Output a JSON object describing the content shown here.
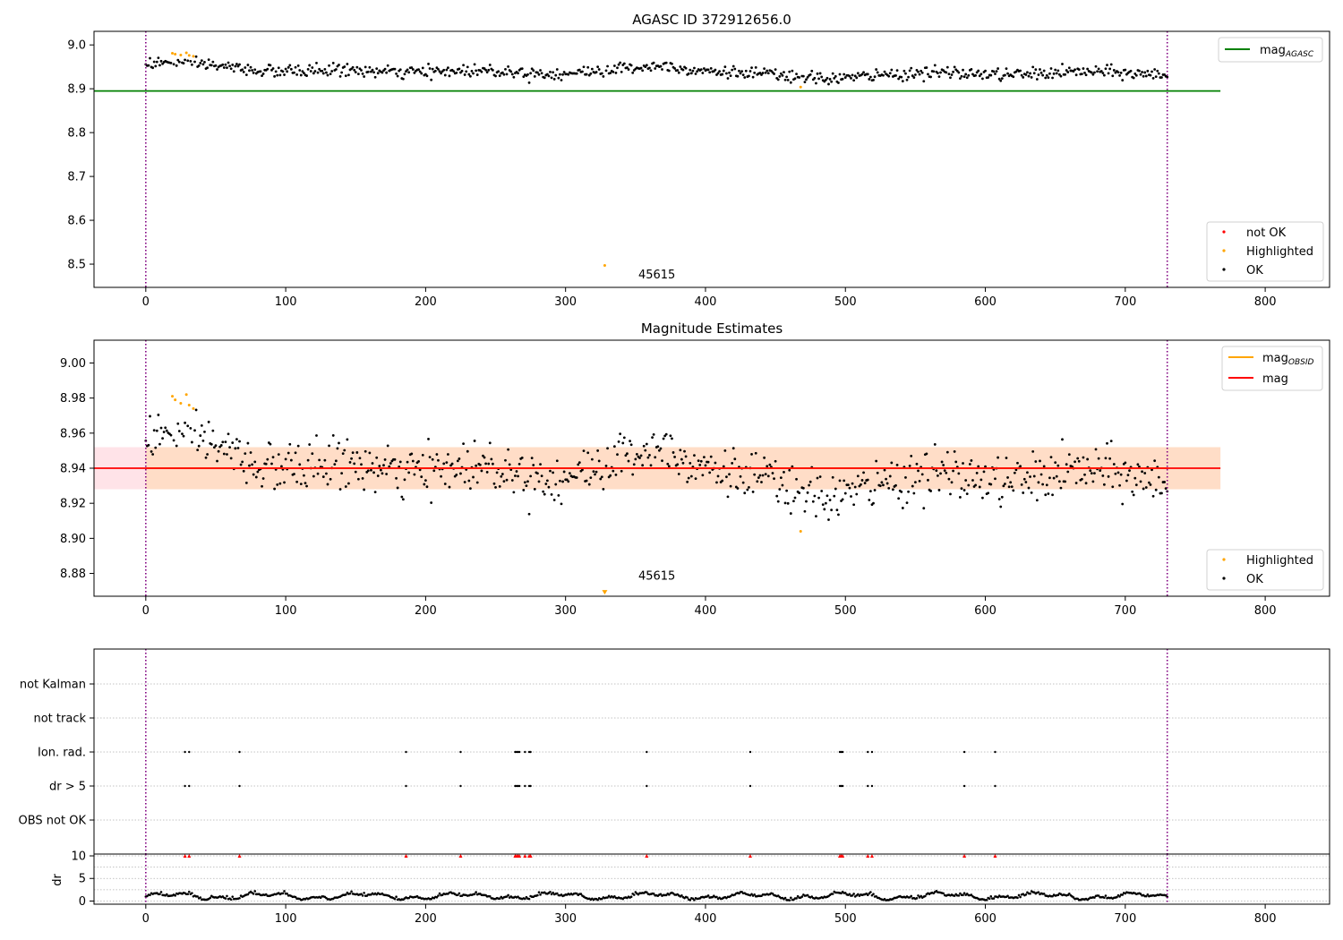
{
  "chart_data": [
    {
      "type": "scatter",
      "title": "AGASC ID 372912656.0",
      "xlim": [
        -37,
        846
      ],
      "ylim": [
        8.447,
        9.031
      ],
      "xticks": [
        0,
        100,
        200,
        300,
        400,
        500,
        600,
        700,
        800
      ],
      "yticks": [
        8.5,
        8.6,
        8.7,
        8.8,
        8.9,
        9.0
      ],
      "ytick_labels": [
        "8.5",
        "8.6",
        "8.7",
        "8.8",
        "8.9",
        "9.0"
      ],
      "grid": false,
      "reference_lines": [
        {
          "name": "mag_AGASC",
          "y": 8.895,
          "x_range": [
            -37,
            768
          ],
          "color": "#008000"
        }
      ],
      "vlines": [
        0,
        730
      ],
      "vline_color": "#800080",
      "trend": {
        "x": [
          0,
          40,
          100,
          200,
          300,
          340,
          370,
          400,
          430,
          470,
          520,
          600,
          650,
          700,
          730
        ],
        "y": [
          8.958,
          8.955,
          8.94,
          8.94,
          8.937,
          8.943,
          8.952,
          8.945,
          8.935,
          8.922,
          8.932,
          8.935,
          8.935,
          8.937,
          8.935
        ]
      },
      "noise": 0.01,
      "highlighted": [
        {
          "x": 19,
          "y": 8.981
        },
        {
          "x": 21,
          "y": 8.979
        },
        {
          "x": 25,
          "y": 8.977
        },
        {
          "x": 29,
          "y": 8.982
        },
        {
          "x": 31,
          "y": 8.976
        },
        {
          "x": 34,
          "y": 8.974
        },
        {
          "x": 328,
          "y": 8.497
        },
        {
          "x": 468,
          "y": 8.904
        }
      ],
      "annotation": {
        "text": "45615",
        "x": 352,
        "y": 8.467
      },
      "legends": [
        {
          "position": "top-right",
          "entries": [
            {
              "label": "mag",
              "sub": "AGASC",
              "kind": "line",
              "color": "#008000"
            }
          ]
        },
        {
          "position": "bottom-right",
          "entries": [
            {
              "label": "not OK",
              "kind": "dot",
              "color": "#ff0000"
            },
            {
              "label": "Highlighted",
              "kind": "dot",
              "color": "#ffa500"
            },
            {
              "label": "OK",
              "kind": "dot",
              "color": "#000000"
            }
          ]
        }
      ]
    },
    {
      "type": "scatter",
      "title": "Magnitude Estimates",
      "xlim": [
        -37,
        846
      ],
      "ylim": [
        8.867,
        9.013
      ],
      "xticks": [
        0,
        100,
        200,
        300,
        400,
        500,
        600,
        700,
        800
      ],
      "yticks": [
        8.88,
        8.9,
        8.92,
        8.94,
        8.96,
        8.98,
        9.0
      ],
      "ytick_labels": [
        "8.88",
        "8.90",
        "8.92",
        "8.94",
        "8.96",
        "8.98",
        "9.00"
      ],
      "grid": false,
      "band": {
        "y0": 8.928,
        "y1": 8.952,
        "x_range": [
          0,
          768
        ],
        "color": "#ffc0cb"
      },
      "band_inner": {
        "y0": 8.928,
        "y1": 8.952,
        "x_range": [
          0,
          768
        ],
        "color": "#ffdab9"
      },
      "reference_lines": [
        {
          "name": "mag",
          "y": 8.94,
          "x_range": [
            -37,
            768
          ],
          "color": "#ff0000"
        },
        {
          "name": "mag_OBSID",
          "y": 8.94,
          "x_range": [
            0,
            730
          ],
          "color": "#ffa500"
        }
      ],
      "vlines": [
        0,
        730
      ],
      "vline_color": "#800080",
      "trend": {
        "x": [
          0,
          40,
          100,
          200,
          300,
          340,
          370,
          400,
          430,
          470,
          520,
          600,
          650,
          700,
          730
        ],
        "y": [
          8.958,
          8.955,
          8.94,
          8.94,
          8.937,
          8.943,
          8.952,
          8.945,
          8.935,
          8.922,
          8.932,
          8.935,
          8.935,
          8.937,
          8.935
        ]
      },
      "noise": 0.01,
      "highlighted": [
        {
          "x": 19,
          "y": 8.981
        },
        {
          "x": 21,
          "y": 8.979
        },
        {
          "x": 25,
          "y": 8.977
        },
        {
          "x": 29,
          "y": 8.982
        },
        {
          "x": 31,
          "y": 8.976
        },
        {
          "x": 34,
          "y": 8.974
        },
        {
          "x": 468,
          "y": 8.904
        }
      ],
      "offscale_marker": {
        "x": 328,
        "y": 8.869,
        "color": "#ffa500"
      },
      "annotation": {
        "text": "45615",
        "x": 352,
        "y": 8.8765
      },
      "legends": [
        {
          "position": "top-right",
          "entries": [
            {
              "label": "mag",
              "sub": "OBSID",
              "kind": "line",
              "color": "#ffa500"
            },
            {
              "label": "mag",
              "sub": "",
              "kind": "line",
              "color": "#ff0000"
            }
          ]
        },
        {
          "position": "bottom-right",
          "entries": [
            {
              "label": "Highlighted",
              "kind": "dot",
              "color": "#ffa500"
            },
            {
              "label": "OK",
              "kind": "dot",
              "color": "#000000"
            }
          ]
        }
      ]
    },
    {
      "type": "scatter",
      "title": "",
      "xlim": [
        -37,
        846
      ],
      "flag_rows": [
        "not Kalman",
        "not track",
        "Ion. rad.",
        "dr > 5",
        "OBS not OK"
      ],
      "flag_points": {
        "Ion. rad.": [
          28,
          31,
          67,
          186,
          225,
          264,
          265,
          266,
          267,
          271,
          274,
          275,
          358,
          432,
          496,
          497,
          498,
          516,
          519,
          585,
          607
        ],
        "dr > 5": [
          28,
          31,
          67,
          186,
          225,
          264,
          265,
          266,
          267,
          271,
          274,
          275,
          358,
          432,
          496,
          497,
          498,
          516,
          519,
          585,
          607
        ]
      },
      "vlines": [
        0,
        730
      ],
      "vline_color": "#800080"
    },
    {
      "type": "scatter",
      "title": "",
      "xlim": [
        -37,
        846
      ],
      "ylim": [
        -0.7,
        10.4
      ],
      "xticks": [
        0,
        100,
        200,
        300,
        400,
        500,
        600,
        700,
        800
      ],
      "yticks": [
        0,
        5,
        10
      ],
      "ylabel": "dr",
      "grid": true,
      "overflow_markers": {
        "y": 10,
        "color": "#ff0000",
        "x": [
          28,
          31,
          67,
          186,
          225,
          264,
          265,
          266,
          267,
          271,
          274,
          275,
          358,
          432,
          496,
          497,
          498,
          516,
          519,
          585,
          607
        ]
      },
      "dr_baseline": 0.9,
      "vlines": [
        0,
        730
      ],
      "vline_color": "#800080"
    }
  ]
}
